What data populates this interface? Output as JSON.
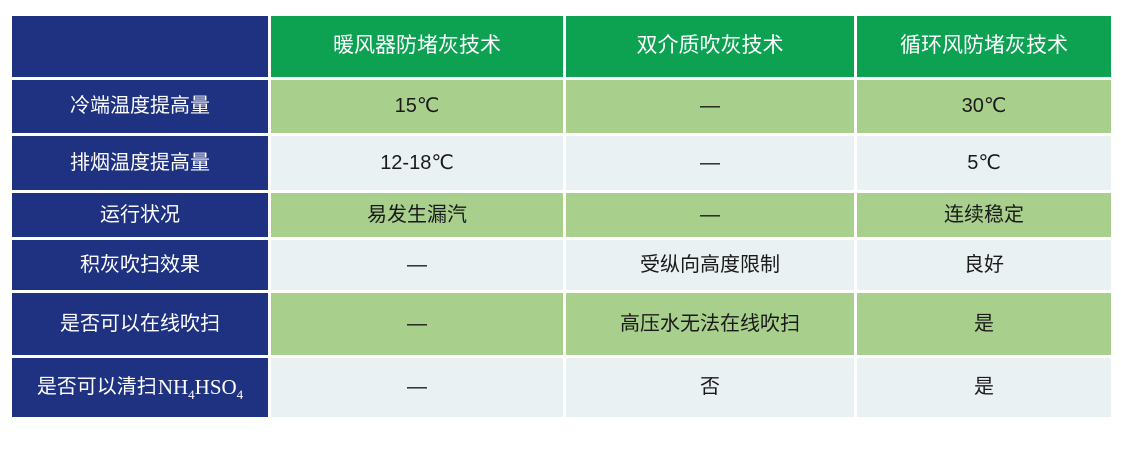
{
  "colors": {
    "row_label_background": "#1f3282",
    "header_background": "#0ca251",
    "cell_green": "#a9cf8d",
    "cell_light": "#eaf1f3",
    "header_text": "#ffffff",
    "data_text": "#1a1a1a",
    "grid_line": "#ffffff"
  },
  "table": {
    "columns": [
      "",
      "暖风器防堵灰技术",
      "双介质吹灰技术",
      "循环风防堵灰技术"
    ],
    "rows": [
      {
        "label": "冷端温度提高量",
        "values": [
          "15℃",
          "—",
          "30℃"
        ],
        "shade": "green"
      },
      {
        "label": "排烟温度提高量",
        "values": [
          "12-18℃",
          "—",
          "5℃"
        ],
        "shade": "light"
      },
      {
        "label": "运行状况",
        "values": [
          "易发生漏汽",
          "—",
          "连续稳定"
        ],
        "shade": "green"
      },
      {
        "label": "积灰吹扫效果",
        "values": [
          "—",
          "受纵向高度限制",
          "良好"
        ],
        "shade": "light"
      },
      {
        "label": "是否可以在线吹扫",
        "values": [
          "—",
          "高压水无法在线吹扫",
          "是"
        ],
        "shade": "green"
      },
      {
        "label_prefix": "是否可以清扫",
        "formula": {
          "part1": "NH",
          "sub1": "4",
          "part2": "HSO",
          "sub2": "4"
        },
        "values": [
          "—",
          "否",
          "是"
        ],
        "shade": "light"
      }
    ]
  }
}
